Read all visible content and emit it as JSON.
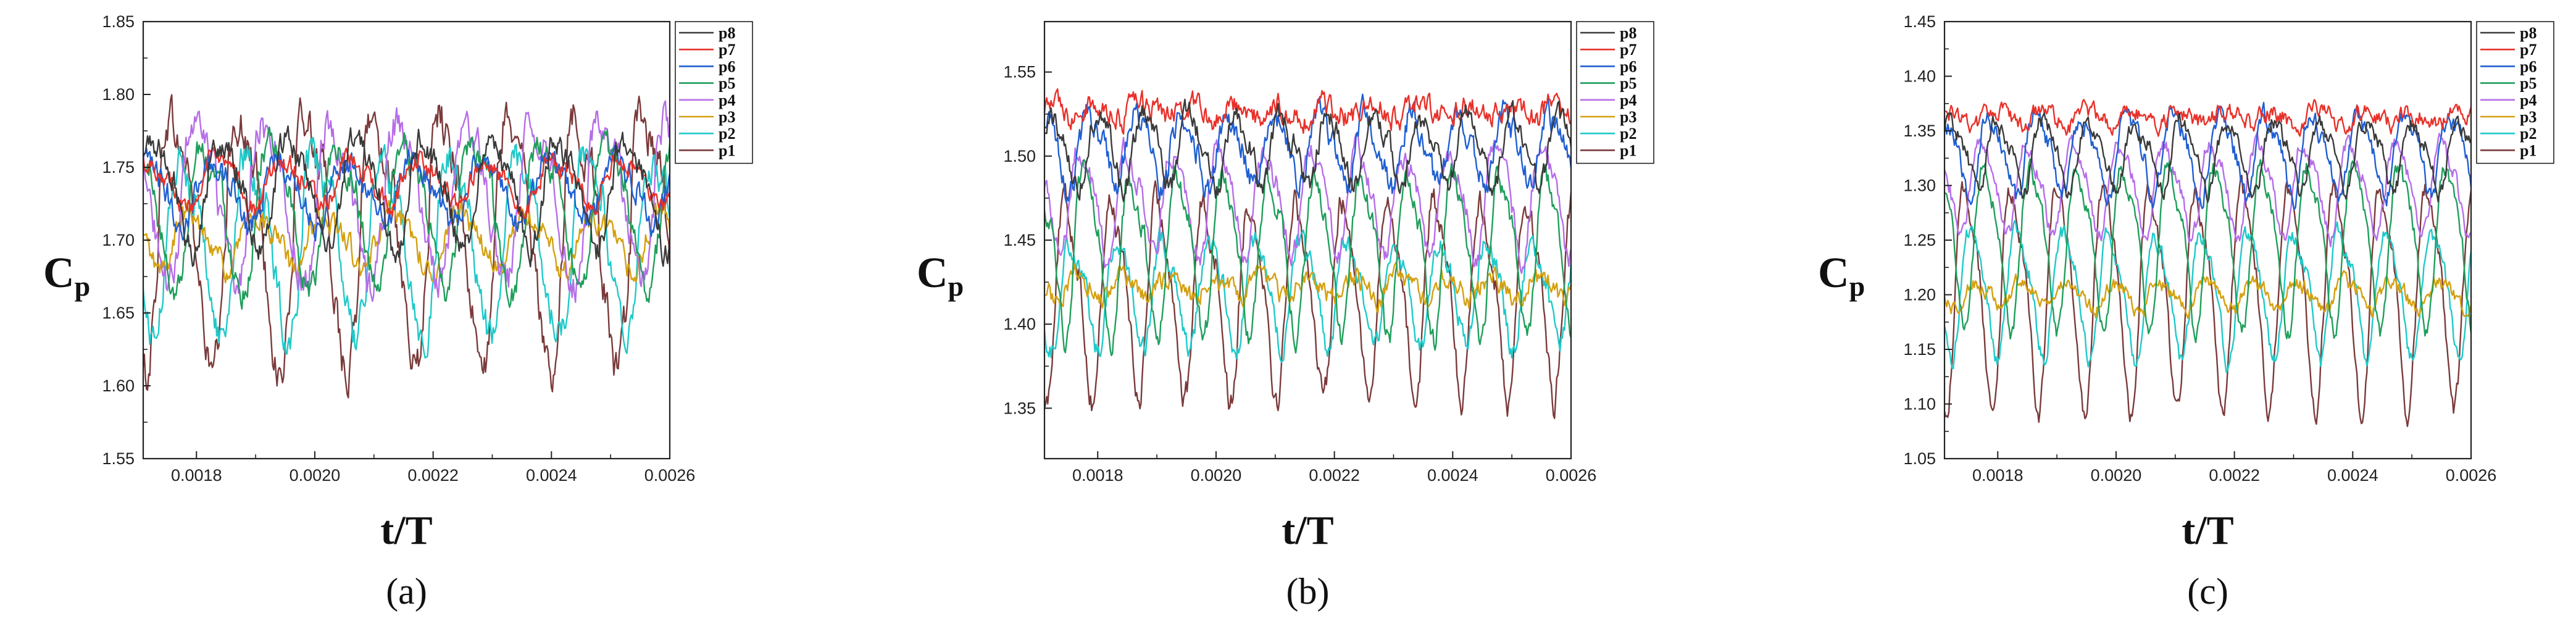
{
  "chart_data": [
    {
      "type": "line",
      "panel_label": "(a)",
      "xlabel": "t/T",
      "ylabel": "C",
      "ylabel_sub": "p",
      "xlim": [
        0.00171,
        0.0026
      ],
      "ylim": [
        1.55,
        1.85
      ],
      "x_ticks": [
        0.0018,
        0.002,
        0.0022,
        0.0024,
        0.0026
      ],
      "x_tick_labels": [
        "0.0018",
        "0.0020",
        "0.0022",
        "0.0024",
        "0.0026"
      ],
      "y_ticks": [
        1.55,
        1.6,
        1.65,
        1.7,
        1.75,
        1.8,
        1.85
      ],
      "y_tick_labels": [
        "1.55",
        "1.60",
        "1.65",
        "1.70",
        "1.75",
        "1.80",
        "1.85"
      ],
      "legend_position": "right",
      "period": 0.000114,
      "series": [
        {
          "name": "p8",
          "color": "#3a3a3a",
          "mean": 1.735,
          "amp": 0.035,
          "noise": 0.008,
          "phase": 0.3,
          "sharp": 0
        },
        {
          "name": "p7",
          "color": "#e8312a",
          "mean": 1.74,
          "amp": 0.015,
          "noise": 0.006,
          "phase": 0.8,
          "sharp": 0
        },
        {
          "name": "p6",
          "color": "#1f5fd1",
          "mean": 1.735,
          "amp": 0.02,
          "noise": 0.008,
          "phase": 1.3,
          "sharp": 0
        },
        {
          "name": "p5",
          "color": "#1f9e5b",
          "mean": 1.72,
          "amp": 0.045,
          "noise": 0.008,
          "phase": 2.0,
          "sharp": 1
        },
        {
          "name": "p4",
          "color": "#b66de8",
          "mean": 1.73,
          "amp": 0.05,
          "noise": 0.01,
          "phase": 2.6,
          "sharp": 1
        },
        {
          "name": "p3",
          "color": "#d4a010",
          "mean": 1.7,
          "amp": 0.018,
          "noise": 0.007,
          "phase": 3.3,
          "sharp": 0
        },
        {
          "name": "p2",
          "color": "#1fc9c9",
          "mean": 1.7,
          "amp": 0.055,
          "noise": 0.01,
          "phase": 4.0,
          "sharp": 1
        },
        {
          "name": "p1",
          "color": "#7a3a3a",
          "mean": 1.705,
          "amp": 0.08,
          "noise": 0.012,
          "phase": 4.8,
          "sharp": 1
        }
      ]
    },
    {
      "type": "line",
      "panel_label": "(b)",
      "xlabel": "t/T",
      "ylabel": "C",
      "ylabel_sub": "p",
      "xlim": [
        0.00171,
        0.0026
      ],
      "ylim": [
        1.32,
        1.58
      ],
      "x_ticks": [
        0.0018,
        0.002,
        0.0022,
        0.0024,
        0.0026
      ],
      "x_tick_labels": [
        "0.0018",
        "0.0020",
        "0.0022",
        "0.0024",
        "0.0026"
      ],
      "y_ticks": [
        1.35,
        1.4,
        1.45,
        1.5,
        1.55
      ],
      "y_tick_labels": [
        "1.35",
        "1.40",
        "1.45",
        "1.50",
        "1.55"
      ],
      "legend_position": "right",
      "period": 7.8e-05,
      "series": [
        {
          "name": "p8",
          "color": "#3a3a3a",
          "mean": 1.505,
          "amp": 0.02,
          "noise": 0.006,
          "phase": 0.4,
          "sharp": 0
        },
        {
          "name": "p7",
          "color": "#e8312a",
          "mean": 1.527,
          "amp": 0.004,
          "noise": 0.006,
          "phase": 0.9,
          "sharp": 0
        },
        {
          "name": "p6",
          "color": "#1f5fd1",
          "mean": 1.505,
          "amp": 0.02,
          "noise": 0.007,
          "phase": 1.5,
          "sharp": 0
        },
        {
          "name": "p5",
          "color": "#1f9e5b",
          "mean": 1.445,
          "amp": 0.045,
          "noise": 0.006,
          "phase": 2.1,
          "sharp": 0
        },
        {
          "name": "p4",
          "color": "#b66de8",
          "mean": 1.475,
          "amp": 0.03,
          "noise": 0.006,
          "phase": 2.7,
          "sharp": 0
        },
        {
          "name": "p3",
          "color": "#d4a010",
          "mean": 1.422,
          "amp": 0.006,
          "noise": 0.005,
          "phase": 3.4,
          "sharp": 0
        },
        {
          "name": "p2",
          "color": "#1fc9c9",
          "mean": 1.42,
          "amp": 0.03,
          "noise": 0.006,
          "phase": 4.0,
          "sharp": 0
        },
        {
          "name": "p1",
          "color": "#7a3a3a",
          "mean": 1.42,
          "amp": 0.055,
          "noise": 0.007,
          "phase": 4.7,
          "sharp": 0
        }
      ]
    },
    {
      "type": "line",
      "panel_label": "(c)",
      "xlabel": "t/T",
      "ylabel": "C",
      "ylabel_sub": "p",
      "xlim": [
        0.00171,
        0.0026
      ],
      "ylim": [
        1.05,
        1.45
      ],
      "x_ticks": [
        0.0018,
        0.002,
        0.0022,
        0.0024,
        0.0026
      ],
      "x_tick_labels": [
        "0.0018",
        "0.0020",
        "0.0022",
        "0.0024",
        "0.0026"
      ],
      "y_ticks": [
        1.05,
        1.1,
        1.15,
        1.2,
        1.25,
        1.3,
        1.35,
        1.4,
        1.45
      ],
      "y_tick_labels": [
        "1.05",
        "1.10",
        "1.15",
        "1.20",
        "1.25",
        "1.30",
        "1.35",
        "1.40",
        "1.45"
      ],
      "legend_position": "right",
      "period": 7.8e-05,
      "series": [
        {
          "name": "p8",
          "color": "#3a3a3a",
          "mean": 1.33,
          "amp": 0.03,
          "noise": 0.007,
          "phase": 0.4,
          "sharp": 0
        },
        {
          "name": "p7",
          "color": "#e8312a",
          "mean": 1.362,
          "amp": 0.006,
          "noise": 0.007,
          "phase": 0.9,
          "sharp": 0
        },
        {
          "name": "p6",
          "color": "#1f5fd1",
          "mean": 1.33,
          "amp": 0.035,
          "noise": 0.008,
          "phase": 1.5,
          "sharp": 0
        },
        {
          "name": "p5",
          "color": "#1f9e5b",
          "mean": 1.25,
          "amp": 0.07,
          "noise": 0.007,
          "phase": 2.1,
          "sharp": 0
        },
        {
          "name": "p4",
          "color": "#b66de8",
          "mean": 1.3,
          "amp": 0.04,
          "noise": 0.007,
          "phase": 2.7,
          "sharp": 0
        },
        {
          "name": "p3",
          "color": "#d4a010",
          "mean": 1.2,
          "amp": 0.012,
          "noise": 0.006,
          "phase": 3.4,
          "sharp": 0
        },
        {
          "name": "p2",
          "color": "#1fc9c9",
          "mean": 1.205,
          "amp": 0.055,
          "noise": 0.007,
          "phase": 4.0,
          "sharp": 0
        },
        {
          "name": "p1",
          "color": "#7a3a3a",
          "mean": 1.205,
          "amp": 0.095,
          "noise": 0.008,
          "phase": 4.7,
          "sharp": 0
        }
      ]
    }
  ]
}
